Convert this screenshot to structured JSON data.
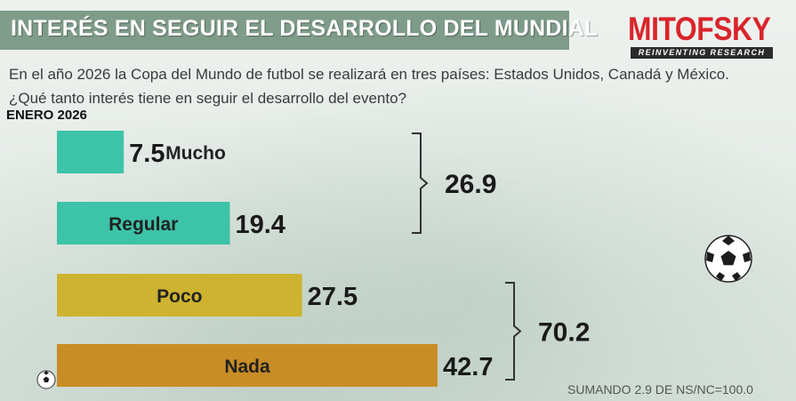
{
  "title": "INTERÉS EN SEGUIR EL DESARROLLO DEL MUNDIAL",
  "logo": {
    "name": "MITOFSKY",
    "tagline": "REINVENTING RESEARCH"
  },
  "question": "En el año 2026 la Copa del Mundo de futbol se realizará en tres países: Estados Unidos, Canadá y México. ¿Qué tanto interés tiene en seguir el desarrollo del evento?",
  "period": "ENERO 2026",
  "footnote": "SUMANDO 2.9 DE NS/NC=100.0",
  "colors": {
    "mucho": "#3cc3a8",
    "regular": "#3cc3a8",
    "poco": "#cdb330",
    "nada": "#c98d26",
    "title_band": "#7f9c8a",
    "logo_red": "#d9252b"
  },
  "chart_data": {
    "type": "bar",
    "orientation": "horizontal",
    "categories": [
      "Mucho",
      "Regular",
      "Poco",
      "Nada"
    ],
    "values": [
      7.5,
      19.4,
      27.5,
      42.7
    ],
    "value_labels": [
      "7.5",
      "19.4",
      "27.5",
      "42.7"
    ],
    "groups": [
      {
        "members": [
          "Mucho",
          "Regular"
        ],
        "total": 26.9,
        "label": "26.9"
      },
      {
        "members": [
          "Poco",
          "Nada"
        ],
        "total": 70.2,
        "label": "70.2"
      }
    ],
    "title": "",
    "xlabel": "",
    "ylabel": "",
    "xlim": [
      0,
      42.7
    ],
    "grid": false,
    "legend": "none"
  }
}
